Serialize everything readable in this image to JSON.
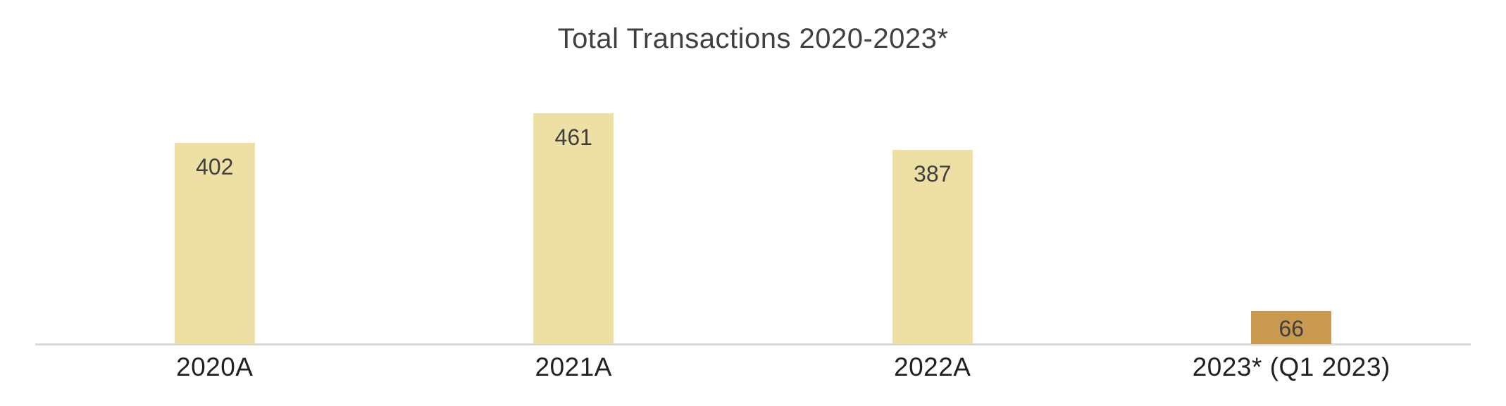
{
  "chart_data": {
    "type": "bar",
    "title": "Total Transactions 2020-2023*",
    "categories": [
      "2020A",
      "2021A",
      "2022A",
      "2023* (Q1 2023)"
    ],
    "values": [
      402,
      461,
      387,
      66
    ],
    "data_labels": [
      "402",
      "461",
      "387",
      "66"
    ],
    "xlabel": "",
    "ylabel": "",
    "ylim": [
      0,
      500
    ],
    "grid": false,
    "legend": false,
    "y_axis_visible": false,
    "bar_colors": [
      "#EEE0A4",
      "#EEE0A4",
      "#EEE0A4",
      "#C8994E"
    ],
    "data_label_color": "#3F3F3F",
    "tick_label_color": "#212121",
    "title_color": "#404040",
    "axis_line_color": "#D9D9D9",
    "background_color": "#FFFFFF"
  }
}
